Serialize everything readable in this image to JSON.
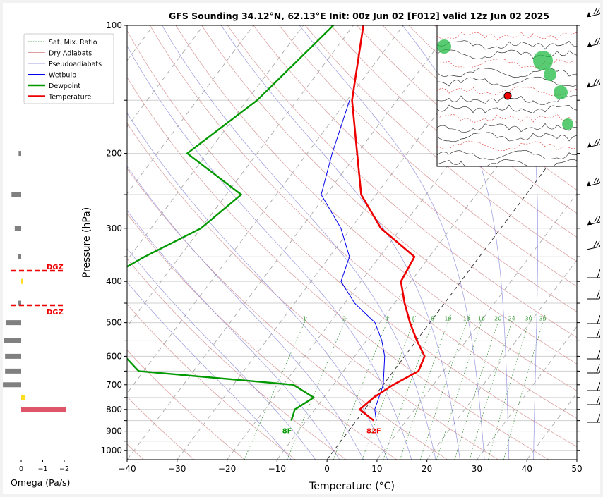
{
  "chart_data": {
    "type": "line",
    "title": "GFS Sounding 34.12°N, 62.13°E Init: 00z Jun 02 [F012] valid 12z Jun 02 2025",
    "xlabel": "Temperature (°C)",
    "ylabel": "Pressure (hPa)",
    "xlim": [
      -40,
      50
    ],
    "ylim": [
      1050,
      100
    ],
    "y_scale": "log",
    "skew": "skew-T",
    "x_ticks": [
      "−40",
      "−30",
      "−20",
      "−10",
      "0",
      "10",
      "20",
      "30",
      "40",
      "50"
    ],
    "y_ticks": [
      "100",
      "200",
      "300",
      "400",
      "500",
      "600",
      "700",
      "800",
      "900",
      "1000"
    ],
    "legend": {
      "position": "top-left",
      "entries": [
        "Sat. Mix. Ratio",
        "Dry Adiabats",
        "Pseudoadiabats",
        "Wetbulb",
        "Dewpoint",
        "Temperature"
      ]
    },
    "series": [
      {
        "name": "Temperature",
        "color": "#ee0000",
        "points": [
          [
            100,
            -58
          ],
          [
            150,
            -49
          ],
          [
            200,
            -40
          ],
          [
            250,
            -33
          ],
          [
            300,
            -24
          ],
          [
            350,
            -13
          ],
          [
            400,
            -12
          ],
          [
            450,
            -8
          ],
          [
            500,
            -4
          ],
          [
            550,
            0
          ],
          [
            600,
            4
          ],
          [
            650,
            5
          ],
          [
            700,
            2
          ],
          [
            750,
            0
          ],
          [
            800,
            -1
          ],
          [
            850,
            3.5
          ]
        ]
      },
      {
        "name": "Dewpoint",
        "color": "#009900",
        "points": [
          [
            100,
            -64
          ],
          [
            150,
            -68
          ],
          [
            200,
            -74
          ],
          [
            250,
            -57
          ],
          [
            300,
            -60
          ],
          [
            350,
            -67
          ],
          [
            400,
            -72
          ],
          [
            450,
            -77
          ],
          [
            500,
            -72
          ],
          [
            550,
            -61
          ],
          [
            600,
            -56
          ],
          [
            650,
            -51
          ],
          [
            700,
            -18
          ],
          [
            750,
            -12
          ],
          [
            800,
            -14
          ],
          [
            850,
            -13
          ]
        ]
      },
      {
        "name": "Wetbulb",
        "color": "#0000ee",
        "points": [
          [
            150,
            -49.5
          ],
          [
            200,
            -45
          ],
          [
            250,
            -41
          ],
          [
            300,
            -32
          ],
          [
            350,
            -26
          ],
          [
            400,
            -24
          ],
          [
            450,
            -18
          ],
          [
            500,
            -11
          ],
          [
            550,
            -7
          ],
          [
            600,
            -4
          ],
          [
            700,
            0
          ],
          [
            800,
            2
          ],
          [
            850,
            4
          ]
        ]
      }
    ],
    "surface_labels": {
      "temperature": "82F",
      "dewpoint": "8F"
    },
    "mixing_ratio_labels": [
      "1",
      "2",
      "4",
      "6",
      "8",
      "10",
      "13",
      "16",
      "20",
      "24",
      "30",
      "36"
    ],
    "dgz_label": "DGZ",
    "omega": {
      "xlabel": "Omega (Pa/s)",
      "x_ticks": [
        "0",
        "−1",
        "−2"
      ],
      "bars": [
        {
          "p": 200,
          "value": 0.12
        },
        {
          "p": 250,
          "value": 0.45
        },
        {
          "p": 300,
          "value": 0.3
        },
        {
          "p": 350,
          "value": 0.15
        },
        {
          "p": 400,
          "value": 0.0
        },
        {
          "p": 450,
          "value": 0.15
        },
        {
          "p": 500,
          "value": 0.7
        },
        {
          "p": 550,
          "value": 0.8
        },
        {
          "p": 600,
          "value": 0.75
        },
        {
          "p": 650,
          "value": 0.75
        },
        {
          "p": 700,
          "value": 0.85
        },
        {
          "p": 750,
          "value": -0.2
        },
        {
          "p": 800,
          "value": -2.1
        }
      ]
    }
  }
}
